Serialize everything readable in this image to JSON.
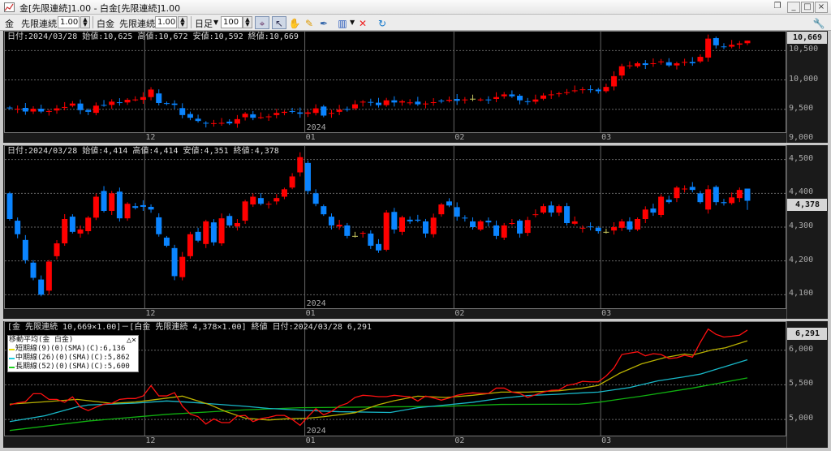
{
  "window": {
    "title": "金[先限連続]1.00 - 白金[先限連続]1.00"
  },
  "toolbar": {
    "sym1": "金",
    "contract1": "先限連続",
    "mult1": "1.00",
    "sym2": "白金",
    "contract2": "先限連続",
    "mult2": "1.00",
    "period": "日足",
    "bars": "100",
    "icons": [
      "crosshair-icon",
      "cursor-icon",
      "hand-icon",
      "pencil-icon",
      "pen-edit-icon",
      "bar-chart-icon",
      "delete-drawings-icon",
      "refresh-icon",
      "wrench-icon"
    ]
  },
  "colors": {
    "up": "#ff0000",
    "down": "#0a84ff",
    "doji": "#c8c860",
    "red_line": "#ff1010",
    "sma_short": "#b8b000",
    "sma_mid": "#18b8c8",
    "sma_long": "#10b010"
  },
  "x_axis": {
    "months": [
      {
        "label": "12",
        "index": 17.2
      },
      {
        "label": "01",
        "index": 37.6
      },
      {
        "label": "02",
        "index": 56.6
      },
      {
        "label": "03",
        "index": 75.3
      }
    ],
    "year_label": "2024"
  },
  "gold": {
    "header": "日付:2024/03/28 始値:10,625 高値:10,672 安値:10,592 終値:10,669",
    "current": "10,669",
    "last": {
      "open": 10625,
      "high": 10672,
      "low": 10592,
      "close": 10669
    },
    "ylim": [
      9110,
      10822
    ],
    "ticks": [
      {
        "v": 9000,
        "l": "9,000"
      },
      {
        "v": 9500,
        "l": "9,500"
      },
      {
        "v": 10000,
        "l": "10,000"
      },
      {
        "v": 10500,
        "l": "10,500"
      }
    ],
    "oc": [
      [
        9530,
        9516
      ],
      [
        9505,
        9510
      ],
      [
        9524,
        9462
      ],
      [
        9462,
        9510
      ],
      [
        9510,
        9462
      ],
      [
        9462,
        9470
      ],
      [
        9480,
        9516
      ],
      [
        9525,
        9539
      ],
      [
        9562,
        9598
      ],
      [
        9598,
        9486
      ],
      [
        9486,
        9457
      ],
      [
        9440,
        9562
      ],
      [
        9575,
        9571
      ],
      [
        9575,
        9630
      ],
      [
        9620,
        9617
      ],
      [
        9617,
        9662
      ],
      [
        9662,
        9667
      ],
      [
        9662,
        9708
      ],
      [
        9708,
        9836
      ],
      [
        9770,
        9607
      ],
      [
        9605,
        9598
      ],
      [
        9598,
        9575
      ],
      [
        9520,
        9402
      ],
      [
        9420,
        9356
      ],
      [
        9340,
        9301
      ],
      [
        9270,
        9260
      ],
      [
        9260,
        9264
      ],
      [
        9262,
        9269
      ],
      [
        9290,
        9260
      ],
      [
        9255,
        9333
      ],
      [
        9365,
        9425
      ],
      [
        9415,
        9356
      ],
      [
        9362,
        9365
      ],
      [
        9372,
        9379
      ],
      [
        9402,
        9438
      ],
      [
        9440,
        9457
      ],
      [
        9470,
        9457
      ],
      [
        9447,
        9425
      ],
      [
        9425,
        9447
      ],
      [
        9438,
        9516
      ],
      [
        9547,
        9393
      ],
      [
        9425,
        9438
      ],
      [
        9457,
        9493
      ],
      [
        9505,
        9502
      ],
      [
        9516,
        9585
      ],
      [
        9616,
        9630
      ],
      [
        9625,
        9612
      ],
      [
        9612,
        9571
      ],
      [
        9571,
        9653
      ],
      [
        9653,
        9616
      ],
      [
        9616,
        9637
      ],
      [
        9612,
        9617
      ],
      [
        9630,
        9585
      ],
      [
        9585,
        9598
      ],
      [
        9615,
        9621
      ],
      [
        9648,
        9644
      ],
      [
        9644,
        9662
      ],
      [
        9676,
        9644
      ],
      [
        9653,
        9667
      ],
      [
        9680,
        9680
      ],
      [
        9662,
        9667
      ],
      [
        9667,
        9662
      ],
      [
        9676,
        9708
      ],
      [
        9722,
        9753
      ],
      [
        9753,
        9721
      ],
      [
        9731,
        9653
      ],
      [
        9637,
        9630
      ],
      [
        9630,
        9667
      ],
      [
        9680,
        9735
      ],
      [
        9745,
        9753
      ],
      [
        9766,
        9771
      ],
      [
        9785,
        9790
      ],
      [
        9810,
        9822
      ],
      [
        9836,
        9840
      ],
      [
        9840,
        9836
      ],
      [
        9836,
        9808
      ],
      [
        9808,
        9881
      ],
      [
        9890,
        10064
      ],
      [
        10075,
        10233
      ],
      [
        10233,
        10247
      ],
      [
        10233,
        10283
      ],
      [
        10283,
        10255
      ],
      [
        10278,
        10283
      ],
      [
        10301,
        10315
      ],
      [
        10301,
        10247
      ],
      [
        10247,
        10283
      ],
      [
        10297,
        10306
      ],
      [
        10306,
        10283
      ],
      [
        10315,
        10393
      ],
      [
        10380,
        10703
      ],
      [
        10712,
        10589
      ],
      [
        10570,
        10566
      ],
      [
        10566,
        10598
      ],
      [
        10600,
        10621
      ],
      [
        10625,
        10669
      ]
    ]
  },
  "platinum": {
    "header": "日付:2024/03/28 始値:4,414 高値:4,414 安値:4,351 終値:4,378",
    "current": "4,378",
    "last": {
      "open": 4414,
      "high": 4414,
      "low": 4351,
      "close": 4378
    },
    "ylim": [
      4060,
      4540
    ],
    "ticks": [
      {
        "v": 4100,
        "l": "4,100"
      },
      {
        "v": 4200,
        "l": "4,200"
      },
      {
        "v": 4300,
        "l": "4,300"
      },
      {
        "v": 4400,
        "l": "4,400"
      },
      {
        "v": 4500,
        "l": "4,500"
      }
    ],
    "oc": [
      [
        4400,
        4324
      ],
      [
        4319,
        4279
      ],
      [
        4262,
        4202
      ],
      [
        4195,
        4150
      ],
      [
        4145,
        4100
      ],
      [
        4112,
        4198
      ],
      [
        4214,
        4252
      ],
      [
        4252,
        4324
      ],
      [
        4331,
        4286
      ],
      [
        4281,
        4293
      ],
      [
        4288,
        4328
      ],
      [
        4328,
        4390
      ],
      [
        4407,
        4348
      ],
      [
        4348,
        4400
      ],
      [
        4405,
        4326
      ],
      [
        4326,
        4369
      ],
      [
        4362,
        4357
      ],
      [
        4365,
        4360
      ],
      [
        4360,
        4352
      ],
      [
        4329,
        4279
      ],
      [
        4269,
        4245
      ],
      [
        4238,
        4155
      ],
      [
        4152,
        4212
      ],
      [
        4214,
        4279
      ],
      [
        4286,
        4260
      ],
      [
        4250,
        4317
      ],
      [
        4314,
        4255
      ],
      [
        4252,
        4326
      ],
      [
        4333,
        4305
      ],
      [
        4302,
        4312
      ],
      [
        4319,
        4376
      ],
      [
        4367,
        4390
      ],
      [
        4386,
        4369
      ],
      [
        4367,
        4369
      ],
      [
        4376,
        4386
      ],
      [
        4390,
        4412
      ],
      [
        4417,
        4450
      ],
      [
        4462,
        4507
      ],
      [
        4490,
        4407
      ],
      [
        4400,
        4369
      ],
      [
        4362,
        4338
      ],
      [
        4331,
        4305
      ],
      [
        4302,
        4307
      ],
      [
        4305,
        4274
      ],
      [
        4274,
        4274
      ],
      [
        4281,
        4283
      ],
      [
        4281,
        4245
      ],
      [
        4250,
        4231
      ],
      [
        4233,
        4343
      ],
      [
        4345,
        4293
      ],
      [
        4286,
        4329
      ],
      [
        4322,
        4317
      ],
      [
        4322,
        4319
      ],
      [
        4317,
        4281
      ],
      [
        4279,
        4328
      ],
      [
        4338,
        4367
      ],
      [
        4376,
        4364
      ],
      [
        4359,
        4331
      ],
      [
        4328,
        4326
      ],
      [
        4317,
        4300
      ],
      [
        4293,
        4317
      ],
      [
        4319,
        4314
      ],
      [
        4305,
        4274
      ],
      [
        4269,
        4305
      ],
      [
        4310,
        4312
      ],
      [
        4319,
        4281
      ],
      [
        4283,
        4321
      ],
      [
        4336,
        4338
      ],
      [
        4343,
        4362
      ],
      [
        4364,
        4343
      ],
      [
        4343,
        4362
      ],
      [
        4362,
        4312
      ],
      [
        4310,
        4317
      ],
      [
        4296,
        4298
      ],
      [
        4302,
        4300
      ],
      [
        4298,
        4288
      ],
      [
        4286,
        4286
      ],
      [
        4290,
        4300
      ],
      [
        4298,
        4317
      ],
      [
        4317,
        4293
      ],
      [
        4293,
        4324
      ],
      [
        4324,
        4352
      ],
      [
        4355,
        4343
      ],
      [
        4336,
        4390
      ],
      [
        4381,
        4374
      ],
      [
        4386,
        4417
      ],
      [
        4412,
        4414
      ],
      [
        4419,
        4410
      ],
      [
        4400,
        4374
      ],
      [
        4352,
        4412
      ],
      [
        4419,
        4374
      ],
      [
        4374,
        4371
      ],
      [
        4371,
        4388
      ],
      [
        4386,
        4410
      ],
      [
        4414,
        4378
      ]
    ]
  },
  "spread": {
    "header": "[金 先限連続 10,669×1.00]－[白金 先限連続 4,378×1.00] 終値 日付:2024/03/28 6,291",
    "current": "6,291",
    "ylim": [
      4767,
      6407
    ],
    "ticks": [
      {
        "v": 5000,
        "l": "5,000"
      },
      {
        "v": 5500,
        "l": "5,500"
      },
      {
        "v": 6000,
        "l": "6,000"
      }
    ],
    "legend": {
      "title": "移動平均(金 白金)",
      "buttons": "△×",
      "items": [
        "短期線(9)(0)(SMA)(C):6,136",
        "中期線(26)(0)(SMA)(C):5,862",
        "長期線(52)(0)(SMA)(C):5,600"
      ]
    },
    "close": [
      5209,
      5240,
      5256,
      5372,
      5372,
      5290,
      5290,
      5248,
      5326,
      5178,
      5128,
      5178,
      5221,
      5233,
      5290,
      5302,
      5302,
      5340,
      5488,
      5340,
      5340,
      5387,
      5194,
      5078,
      5040,
      4934,
      5008,
      4954,
      4954,
      5050,
      5058,
      4969,
      5012,
      5031,
      5058,
      5058,
      5000,
      4915,
      5040,
      5155,
      5066,
      5116,
      5194,
      5233,
      5318,
      5349,
      5341,
      5329,
      5329,
      5349,
      5337,
      5326,
      5267,
      5337,
      5310,
      5279,
      5310,
      5349,
      5370,
      5384,
      5376,
      5376,
      5453,
      5453,
      5395,
      5376,
      5318,
      5357,
      5395,
      5422,
      5426,
      5492,
      5512,
      5550,
      5543,
      5543,
      5628,
      5744,
      5938,
      5957,
      5977,
      5919,
      5950,
      5938,
      5880,
      5892,
      5927,
      5900,
      6113,
      6306,
      6229,
      6190,
      6202,
      6217,
      6291
    ],
    "sma_short": [
      [
        0,
        5221
      ],
      [
        4,
        5252
      ],
      [
        8.6,
        5290
      ],
      [
        13,
        5233
      ],
      [
        16,
        5252
      ],
      [
        18,
        5279
      ],
      [
        22,
        5337
      ],
      [
        25.5,
        5213
      ],
      [
        27.5,
        5116
      ],
      [
        30,
        5019
      ],
      [
        33,
        4992
      ],
      [
        35,
        5008
      ],
      [
        38,
        5019
      ],
      [
        40,
        5039
      ],
      [
        44,
        5097
      ],
      [
        47,
        5213
      ],
      [
        49,
        5271
      ],
      [
        52,
        5337
      ],
      [
        55.6,
        5318
      ],
      [
        59,
        5349
      ],
      [
        62.6,
        5395
      ],
      [
        66,
        5395
      ],
      [
        70,
        5415
      ],
      [
        73,
        5453
      ],
      [
        75,
        5492
      ],
      [
        77.7,
        5666
      ],
      [
        80.5,
        5802
      ],
      [
        83.4,
        5892
      ],
      [
        86,
        5946
      ],
      [
        87,
        5930
      ],
      [
        89.5,
        6004
      ],
      [
        91.2,
        6035
      ],
      [
        94,
        6136
      ]
    ],
    "sma_mid": [
      [
        0,
        4969
      ],
      [
        4.5,
        5054
      ],
      [
        8.6,
        5182
      ],
      [
        10,
        5209
      ],
      [
        16,
        5236
      ],
      [
        20,
        5267
      ],
      [
        23,
        5248
      ],
      [
        30,
        5190
      ],
      [
        33,
        5159
      ],
      [
        37.6,
        5132
      ],
      [
        42,
        5112
      ],
      [
        48.5,
        5101
      ],
      [
        52,
        5170
      ],
      [
        55.6,
        5209
      ],
      [
        59,
        5248
      ],
      [
        62.6,
        5306
      ],
      [
        66,
        5345
      ],
      [
        70,
        5364
      ],
      [
        73,
        5384
      ],
      [
        75,
        5395
      ],
      [
        79,
        5461
      ],
      [
        82.6,
        5558
      ],
      [
        86,
        5616
      ],
      [
        88,
        5655
      ],
      [
        94,
        5862
      ]
    ],
    "sma_long": [
      [
        0,
        4841
      ],
      [
        10,
        4977
      ],
      [
        20,
        5074
      ],
      [
        30,
        5139
      ],
      [
        37,
        5170
      ],
      [
        48.5,
        5182
      ],
      [
        55.6,
        5190
      ],
      [
        62.6,
        5217
      ],
      [
        72.6,
        5221
      ],
      [
        75,
        5248
      ],
      [
        80.5,
        5337
      ],
      [
        87,
        5453
      ],
      [
        94,
        5600
      ]
    ]
  }
}
